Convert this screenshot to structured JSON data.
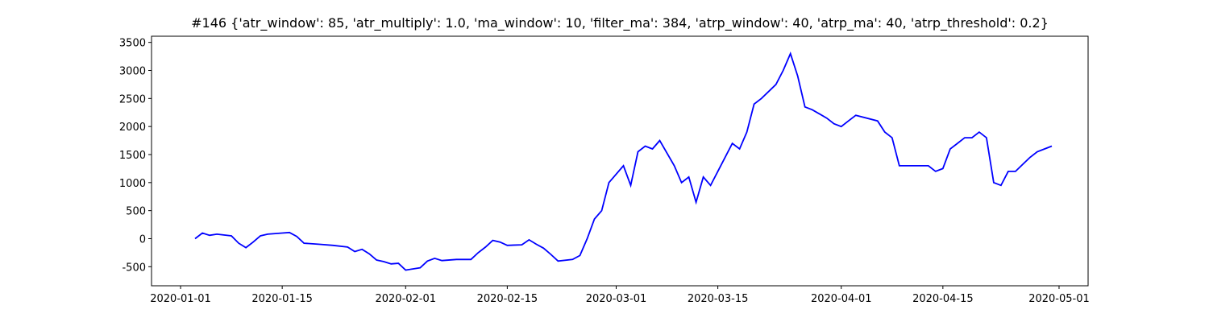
{
  "chart_data": {
    "type": "line",
    "title": "#146 {'atr_window': 85, 'atr_multiply': 1.0, 'ma_window': 10, 'filter_ma': 384, 'atrp_window': 40, 'atrp_ma': 40, 'atrp_threshold': 0.2}",
    "x": [
      "2020-01-03",
      "2020-01-04",
      "2020-01-05",
      "2020-01-06",
      "2020-01-08",
      "2020-01-09",
      "2020-01-10",
      "2020-01-11",
      "2020-01-12",
      "2020-01-13",
      "2020-01-15",
      "2020-01-16",
      "2020-01-17",
      "2020-01-18",
      "2020-01-20",
      "2020-01-22",
      "2020-01-24",
      "2020-01-25",
      "2020-01-26",
      "2020-01-27",
      "2020-01-28",
      "2020-01-29",
      "2020-01-30",
      "2020-01-31",
      "2020-02-01",
      "2020-02-03",
      "2020-02-04",
      "2020-02-05",
      "2020-02-06",
      "2020-02-08",
      "2020-02-10",
      "2020-02-11",
      "2020-02-12",
      "2020-02-13",
      "2020-02-14",
      "2020-02-15",
      "2020-02-17",
      "2020-02-18",
      "2020-02-19",
      "2020-02-20",
      "2020-02-21",
      "2020-02-22",
      "2020-02-24",
      "2020-02-25",
      "2020-02-26",
      "2020-02-27",
      "2020-02-28",
      "2020-02-29",
      "2020-03-02",
      "2020-03-03",
      "2020-03-04",
      "2020-03-05",
      "2020-03-06",
      "2020-03-07",
      "2020-03-09",
      "2020-03-10",
      "2020-03-11",
      "2020-03-12",
      "2020-03-13",
      "2020-03-14",
      "2020-03-17",
      "2020-03-18",
      "2020-03-19",
      "2020-03-20",
      "2020-03-21",
      "2020-03-23",
      "2020-03-24",
      "2020-03-25",
      "2020-03-26",
      "2020-03-27",
      "2020-03-28",
      "2020-03-30",
      "2020-03-31",
      "2020-04-01",
      "2020-04-02",
      "2020-04-03",
      "2020-04-06",
      "2020-04-07",
      "2020-04-08",
      "2020-04-09",
      "2020-04-13",
      "2020-04-14",
      "2020-04-15",
      "2020-04-16",
      "2020-04-17",
      "2020-04-18",
      "2020-04-19",
      "2020-04-20",
      "2020-04-21",
      "2020-04-22",
      "2020-04-23",
      "2020-04-24",
      "2020-04-25",
      "2020-04-27",
      "2020-04-28",
      "2020-04-29",
      "2020-04-30"
    ],
    "series": [
      {
        "color": "#0000ff",
        "values": [
          0,
          100,
          60,
          80,
          50,
          -80,
          -160,
          -60,
          50,
          80,
          100,
          110,
          40,
          -80,
          -100,
          -120,
          -150,
          -230,
          -190,
          -270,
          -380,
          -410,
          -450,
          -440,
          -560,
          -520,
          -400,
          -350,
          -390,
          -370,
          -370,
          -250,
          -150,
          -30,
          -60,
          -120,
          -110,
          -20,
          -100,
          -170,
          -280,
          -400,
          -370,
          -300,
          0,
          350,
          500,
          1000,
          1300,
          950,
          1550,
          1650,
          1600,
          1750,
          1300,
          1000,
          1100,
          650,
          1100,
          950,
          1700,
          1600,
          1900,
          2400,
          2500,
          2750,
          3000,
          3300,
          2900,
          2350,
          2300,
          2150,
          2050,
          2000,
          2100,
          2200,
          2100,
          1900,
          1800,
          1300,
          1300,
          1200,
          1250,
          1600,
          1700,
          1800,
          1800,
          1900,
          1800,
          1000,
          950,
          1200,
          1200,
          1450,
          1550,
          1600,
          1650
        ]
      }
    ],
    "xlim": [
      "2019-12-28",
      "2020-05-05"
    ],
    "xticks": [
      "2020-01-01",
      "2020-01-15",
      "2020-02-01",
      "2020-02-15",
      "2020-03-01",
      "2020-03-15",
      "2020-04-01",
      "2020-04-15",
      "2020-05-01"
    ],
    "ylim": [
      -840,
      3610
    ],
    "yticks": [
      -500,
      0,
      500,
      1000,
      1500,
      2000,
      2500,
      3000,
      3500
    ]
  }
}
